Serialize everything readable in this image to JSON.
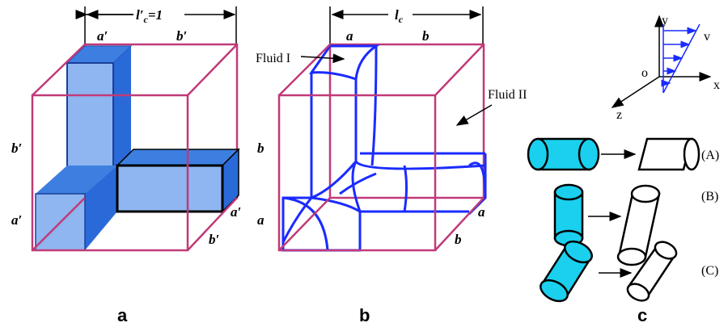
{
  "panel_a": {
    "label": "a",
    "top_dimension": {
      "symbol": "l′",
      "subscript": "c",
      "suffix": "=1"
    },
    "top_segments": [
      "a′",
      "b′"
    ],
    "left_segments": [
      "b′",
      "a′"
    ],
    "right_segments": [
      "a′",
      "b′"
    ]
  },
  "panel_b": {
    "label": "b",
    "top_dimension": {
      "symbol": "l",
      "subscript": "c"
    },
    "top_segments": [
      "a",
      "b"
    ],
    "left_segments": [
      "b",
      "a"
    ],
    "right_segments": [
      "a",
      "b"
    ],
    "fluids": [
      "Fluid I",
      "Fluid II"
    ]
  },
  "panel_c": {
    "label": "c",
    "axes": {
      "y": "y",
      "x": "x",
      "z": "z",
      "origin": "o",
      "velocity": "v"
    },
    "cases": [
      "(A)",
      "(B)",
      "(C)"
    ]
  }
}
